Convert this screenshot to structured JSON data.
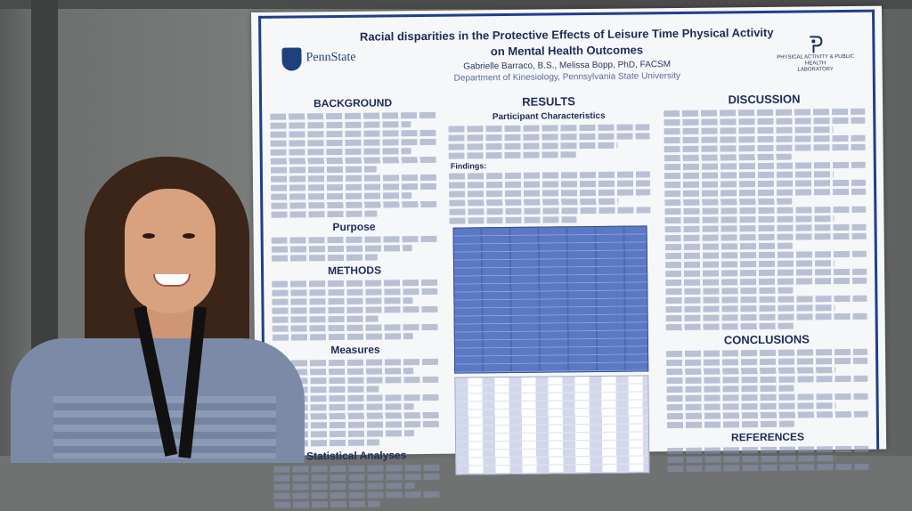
{
  "poster": {
    "title_line1": "Racial disparities in the Protective Effects of Leisure Time Physical Activity",
    "title_line2": "on Mental Health Outcomes",
    "authors": "Gabrielle Barraco, B.S., Melissa Bopp, PhD, FACSM",
    "department": "Department of Kinesiology, Pennsylvania State University",
    "left_logo": "PennState",
    "right_logo_line1": "PHYSICAL ACTIVITY & PUBLIC HEALTH",
    "right_logo_line2": "LABORATORY",
    "sections": {
      "background": "BACKGROUND",
      "purpose": "Purpose",
      "methods": "METHODS",
      "measures": "Measures",
      "stats": "Statistical Analyses",
      "results": "RESULTS",
      "participant": "Participant Characteristics",
      "findings": "Findings:",
      "discussion": "DISCUSSION",
      "conclusions": "CONCLUSIONS",
      "references": "REFERENCES"
    }
  },
  "colors": {
    "poster_blue": "#1e3f8a",
    "table_blue": "#4a67b3",
    "hair": "#3b2418",
    "shirt": "#7b8aa6"
  }
}
